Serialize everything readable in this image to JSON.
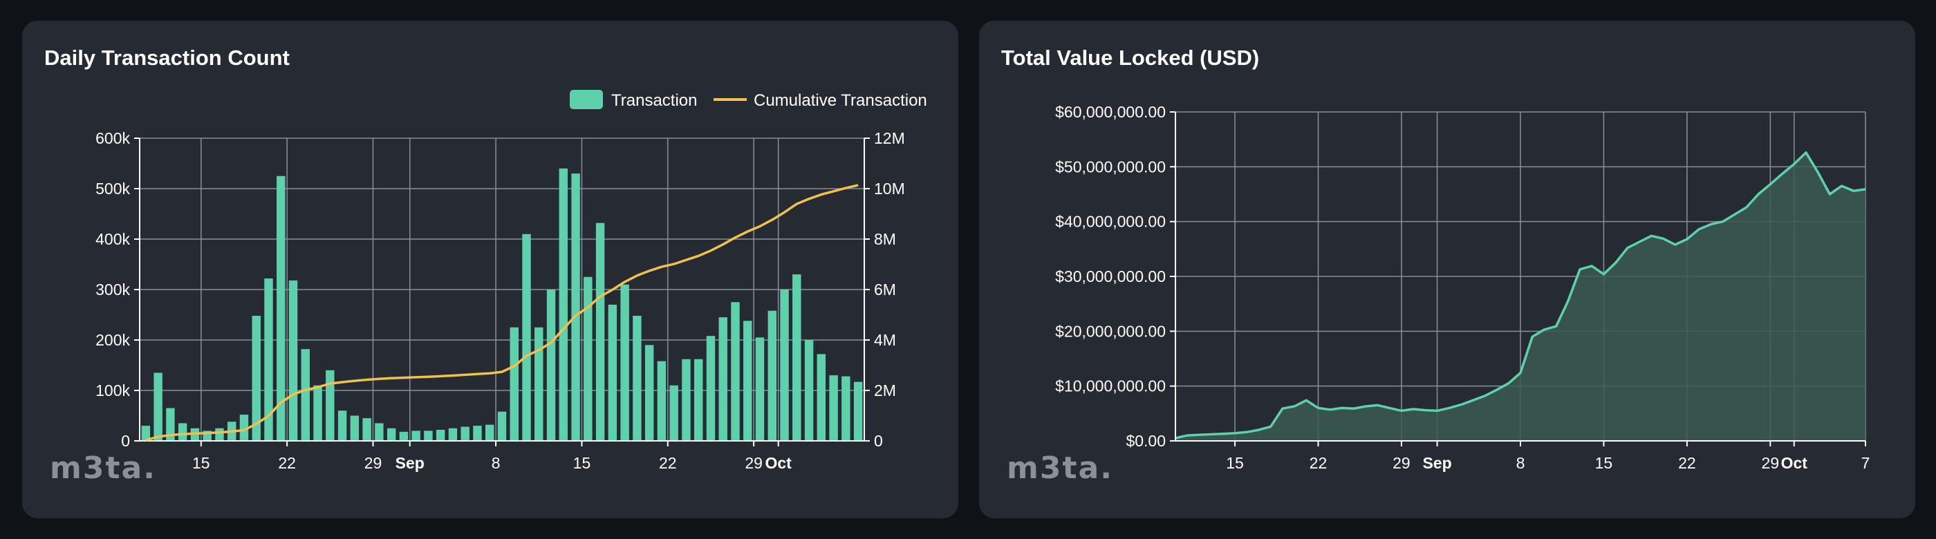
{
  "colors": {
    "bar": "#5ed0ac",
    "cumulative": "#f0c050",
    "tvl_line": "#5ed0ac",
    "tvl_fill": "#3a5a52",
    "grid": "#8a8e96",
    "axis": "#ffffff"
  },
  "logo": {
    "text": "m3ta."
  },
  "chart_data": [
    {
      "type": "bar",
      "title": "Daily Transaction Count",
      "legend": {
        "placement": "top-right",
        "entries": [
          "Transaction",
          "Cumulative Transaction"
        ]
      },
      "grid": true,
      "x_ticks": [
        {
          "label": "15",
          "day": 5,
          "bold": false
        },
        {
          "label": "22",
          "day": 12,
          "bold": false
        },
        {
          "label": "29",
          "day": 19,
          "bold": false
        },
        {
          "label": "Sep",
          "day": 22,
          "bold": true
        },
        {
          "label": "8",
          "day": 29,
          "bold": false
        },
        {
          "label": "15",
          "day": 36,
          "bold": false
        },
        {
          "label": "22",
          "day": 43,
          "bold": false
        },
        {
          "label": "29",
          "day": 50,
          "bold": false
        },
        {
          "label": "Oct",
          "day": 52,
          "bold": true
        }
      ],
      "y_left": {
        "ticks": [
          "0",
          "100k",
          "200k",
          "300k",
          "400k",
          "500k",
          "600k"
        ],
        "ylim": [
          0,
          600000
        ]
      },
      "y_right": {
        "ticks": [
          "0",
          "2M",
          "4M",
          "6M",
          "8M",
          "10M",
          "12M"
        ],
        "ylim": [
          0,
          12000000
        ]
      },
      "series": [
        {
          "name": "Transaction",
          "values": [
            30000,
            135000,
            65000,
            35000,
            25000,
            20000,
            25000,
            38000,
            52000,
            248000,
            322000,
            525000,
            318000,
            182000,
            110000,
            140000,
            60000,
            50000,
            45000,
            35000,
            25000,
            18000,
            20000,
            20000,
            22000,
            25000,
            28000,
            30000,
            32000,
            58000,
            225000,
            410000,
            225000,
            300000,
            540000,
            530000,
            325000,
            432000,
            270000,
            310000,
            248000,
            190000,
            158000,
            110000,
            162000,
            162000,
            208000,
            245000,
            275000,
            238000,
            205000,
            258000,
            300000,
            330000,
            200000,
            172000,
            130000,
            128000,
            117000
          ]
        },
        {
          "name": "Cumulative Transaction",
          "values": [
            30000,
            165000,
            230000,
            265000,
            290000,
            310000,
            335000,
            373000,
            425000,
            673000,
            995000,
            1520000,
            1838000,
            2020000,
            2130000,
            2270000,
            2330000,
            2380000,
            2425000,
            2460000,
            2485000,
            2503000,
            2523000,
            2543000,
            2565000,
            2590000,
            2618000,
            2648000,
            2680000,
            2738000,
            2963000,
            3373000,
            3598000,
            3898000,
            4438000,
            4968000,
            5293000,
            5725000,
            5995000,
            6305000,
            6553000,
            6743000,
            6901000,
            7011000,
            7173000,
            7335000,
            7543000,
            7788000,
            8063000,
            8301000,
            8506000,
            8764000,
            9064000,
            9394000,
            9594000,
            9766000,
            9896000,
            10024000,
            10141000
          ]
        }
      ]
    },
    {
      "type": "area",
      "title": "Total Value Locked (USD)",
      "grid": true,
      "x_ticks": [
        {
          "label": "15",
          "day": 5,
          "bold": false
        },
        {
          "label": "22",
          "day": 12,
          "bold": false
        },
        {
          "label": "29",
          "day": 19,
          "bold": false
        },
        {
          "label": "Sep",
          "day": 22,
          "bold": true
        },
        {
          "label": "8",
          "day": 29,
          "bold": false
        },
        {
          "label": "15",
          "day": 36,
          "bold": false
        },
        {
          "label": "22",
          "day": 43,
          "bold": false
        },
        {
          "label": "29",
          "day": 50,
          "bold": false
        },
        {
          "label": "Oct",
          "day": 52,
          "bold": true
        },
        {
          "label": "7",
          "day": 58,
          "bold": false
        }
      ],
      "y": {
        "ticks": [
          "$0.00",
          "$10,000,000.00",
          "$20,000,000.00",
          "$30,000,000.00",
          "$40,000,000.00",
          "$50,000,000.00",
          "$60,000,000.00"
        ],
        "ylim": [
          0,
          60000000
        ]
      },
      "series": [
        {
          "name": "TVL",
          "values": [
            500000,
            1000000,
            1100000,
            1200000,
            1300000,
            1400000,
            1600000,
            2000000,
            2600000,
            5900000,
            6300000,
            7400000,
            6000000,
            5700000,
            6000000,
            5900000,
            6300000,
            6500000,
            6000000,
            5500000,
            5800000,
            5600000,
            5500000,
            6000000,
            6600000,
            7400000,
            8200000,
            9300000,
            10500000,
            12400000,
            19000000,
            20300000,
            20900000,
            25500000,
            31300000,
            31900000,
            30400000,
            32500000,
            35200000,
            36300000,
            37400000,
            36900000,
            35800000,
            36800000,
            38600000,
            39500000,
            40000000,
            41300000,
            42600000,
            45000000,
            46800000,
            48700000,
            50500000,
            52600000,
            49000000,
            45000000,
            46500000,
            45600000,
            45900000
          ]
        }
      ]
    }
  ]
}
